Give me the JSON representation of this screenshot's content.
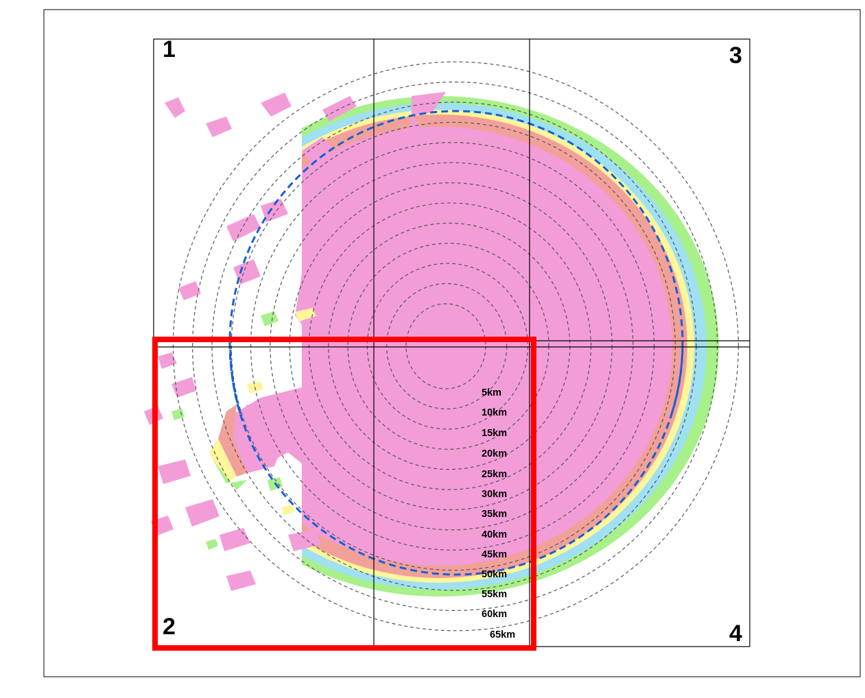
{
  "colors": {
    "frame": "#000000",
    "highlight": "#ff0000",
    "boundary": "#1560d4",
    "ring": "#555555",
    "bands": [
      "#f29dd8",
      "#f2a09a",
      "#fff59a",
      "#9fe0f2",
      "#a8f08a"
    ]
  },
  "quadrants": [
    "1",
    "2",
    "3",
    "4"
  ],
  "ring_labels": [
    "5km",
    "10km",
    "15km",
    "20km",
    "25km",
    "30km",
    "35km",
    "40km",
    "45km",
    "50km",
    "55km",
    "60km",
    "65km"
  ]
}
